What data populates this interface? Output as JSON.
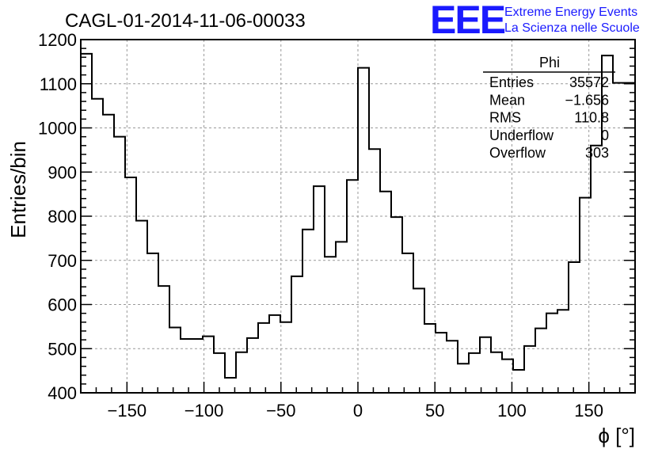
{
  "chart_data": {
    "type": "bar",
    "title": "CAGL-01-2014-11-06-00033",
    "xlabel": "ϕ [°]",
    "ylabel": "Entries/bin",
    "xlim": [
      -180,
      180
    ],
    "ylim": [
      400,
      1200
    ],
    "x_ticks": [
      -150,
      -100,
      -50,
      0,
      50,
      100,
      150
    ],
    "y_ticks": [
      400,
      500,
      600,
      700,
      800,
      900,
      1000,
      1100,
      1200
    ],
    "grid": true,
    "bin_width": 7.2,
    "values": [
      1168,
      1066,
      1030,
      980,
      888,
      790,
      716,
      642,
      548,
      522,
      522,
      528,
      490,
      434,
      492,
      524,
      558,
      576,
      560,
      664,
      770,
      868,
      708,
      742,
      882,
      1136,
      952,
      856,
      798,
      716,
      636,
      556,
      536,
      518,
      466,
      490,
      526,
      492,
      476,
      452,
      506,
      546,
      580,
      588,
      696,
      842,
      960,
      1164,
      1102,
      1102
    ],
    "stats_box": {
      "name": "Phi",
      "rows": [
        {
          "label": "Entries",
          "value": "35572"
        },
        {
          "label": "Mean",
          "value": "−1.656"
        },
        {
          "label": "RMS",
          "value": "110.8"
        },
        {
          "label": "Underflow",
          "value": "0"
        },
        {
          "label": "Overflow",
          "value": "303"
        }
      ]
    }
  },
  "logo": {
    "mark": "EEE",
    "line1": "Extreme Energy Events",
    "line2": "La Scienza nelle Scuole",
    "color": "#1a1aff"
  }
}
